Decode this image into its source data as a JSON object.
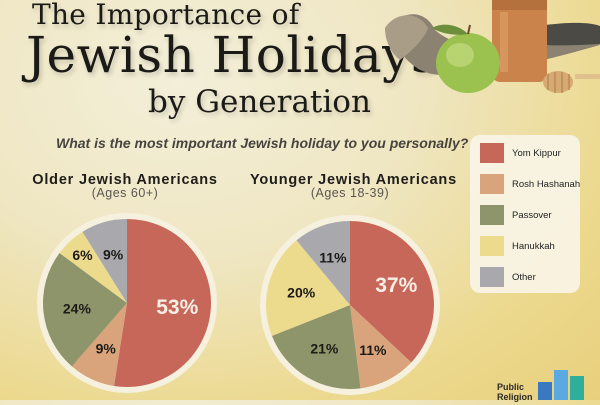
{
  "header": {
    "title_line1": "The Importance of",
    "title_line2": "Jewish Holidays",
    "title_line3": "by Generation"
  },
  "question": "What is the most important Jewish holiday to you personally?",
  "groups": [
    {
      "title": "Older Jewish Americans",
      "subtitle": "(Ages 60+)"
    },
    {
      "title": "Younger Jewish Americans",
      "subtitle": "(Ages 18-39)"
    }
  ],
  "legend": {
    "items": [
      {
        "label": "Yom Kippur",
        "color": "#c7675a"
      },
      {
        "label": "Rosh Hashanah",
        "color": "#d9a47c"
      },
      {
        "label": "Passover",
        "color": "#8f956a"
      },
      {
        "label": "Hanukkah",
        "color": "#ecdb8c"
      },
      {
        "label": "Other",
        "color": "#a9a9ad"
      }
    ]
  },
  "logo": {
    "line1": "Public",
    "line2": "Religion",
    "bar_colors": [
      "#3b78c2",
      "#5aa9e0",
      "#2fae9c"
    ]
  },
  "decorations": [
    "shofar-image",
    "apple-image",
    "honey-jar-image",
    "honey-dipper-image"
  ],
  "chart_data": [
    {
      "type": "pie",
      "title": "Older Jewish Americans (Ages 60+)",
      "question": "What is the most important Jewish holiday to you personally?",
      "categories": [
        "Yom Kippur",
        "Rosh Hashanah",
        "Passover",
        "Hanukkah",
        "Other"
      ],
      "values": [
        53,
        9,
        24,
        6,
        9
      ],
      "labels": [
        "53%",
        "9%",
        "24%",
        "6%",
        "9%"
      ],
      "colors": [
        "#c7675a",
        "#d9a47c",
        "#8f956a",
        "#ecdb8c",
        "#a9a9ad"
      ],
      "legend_position": "right"
    },
    {
      "type": "pie",
      "title": "Younger Jewish Americans (Ages 18-39)",
      "question": "What is the most important Jewish holiday to you personally?",
      "categories": [
        "Yom Kippur",
        "Rosh Hashanah",
        "Passover",
        "Hanukkah",
        "Other"
      ],
      "values": [
        37,
        11,
        21,
        20,
        11
      ],
      "labels": [
        "37%",
        "11%",
        "21%",
        "20%",
        "11%"
      ],
      "colors": [
        "#c7675a",
        "#d9a47c",
        "#8f956a",
        "#ecdb8c",
        "#a9a9ad"
      ],
      "legend_position": "right"
    }
  ]
}
